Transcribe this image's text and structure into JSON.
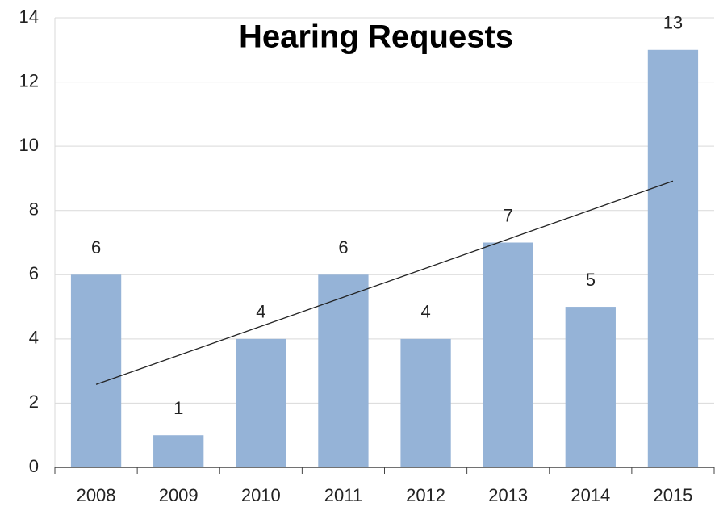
{
  "chart_data": {
    "type": "bar",
    "title": "Hearing Requests",
    "categories": [
      "2008",
      "2009",
      "2010",
      "2011",
      "2012",
      "2013",
      "2014",
      "2015"
    ],
    "values": [
      6,
      1,
      4,
      6,
      4,
      7,
      5,
      13
    ],
    "color": "#95b3d7",
    "ylim": [
      0,
      14
    ],
    "yticks": [
      0,
      2,
      4,
      6,
      8,
      10,
      12,
      14
    ],
    "grid": true,
    "trendline": "linear"
  }
}
